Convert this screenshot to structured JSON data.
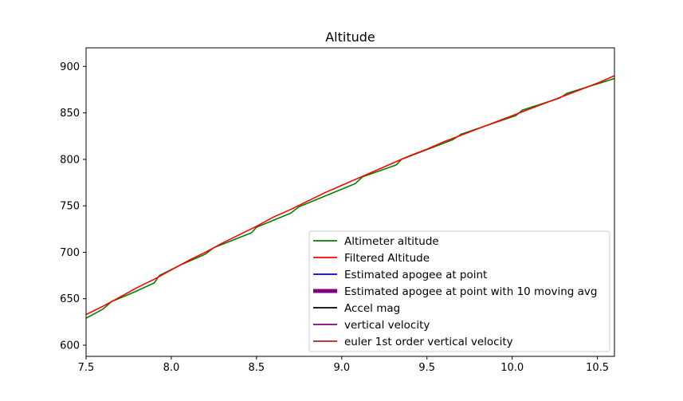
{
  "chart_data": {
    "type": "line",
    "title": "Altitude",
    "xlabel": "",
    "ylabel": "",
    "xlim": [
      7.5,
      10.6
    ],
    "ylim": [
      588,
      920
    ],
    "xticks": [
      7.5,
      8.0,
      8.5,
      9.0,
      9.5,
      10.0,
      10.5
    ],
    "xtick_labels": [
      "7.5",
      "8.0",
      "8.5",
      "9.0",
      "9.5",
      "10.0",
      "10.5"
    ],
    "yticks": [
      600,
      650,
      700,
      750,
      800,
      850,
      900
    ],
    "ytick_labels": [
      "600",
      "650",
      "700",
      "750",
      "800",
      "850",
      "900"
    ],
    "grid": false,
    "legend_position": "lower-right",
    "series": [
      {
        "name": "Altimeter altitude",
        "color": "#008000",
        "x": [
          7.5,
          7.6,
          7.65,
          7.78,
          7.9,
          7.93,
          8.05,
          8.2,
          8.25,
          8.47,
          8.5,
          8.7,
          8.75,
          9.08,
          9.12,
          9.32,
          9.35,
          9.65,
          9.7,
          10.02,
          10.06,
          10.28,
          10.32,
          10.6
        ],
        "y": [
          629,
          639,
          647,
          657,
          667,
          675,
          686,
          698,
          705,
          721,
          727,
          742,
          749,
          774,
          781,
          794,
          800,
          821,
          827,
          847,
          853,
          866,
          871,
          887
        ]
      },
      {
        "name": "Filtered Altitude",
        "color": "#ff0000",
        "x": [
          7.5,
          7.6,
          7.7,
          7.8,
          7.9,
          8.0,
          8.1,
          8.2,
          8.3,
          8.4,
          8.5,
          8.6,
          8.7,
          8.8,
          8.9,
          9.0,
          9.1,
          9.2,
          9.3,
          9.4,
          9.5,
          9.6,
          9.7,
          9.8,
          9.9,
          10.0,
          10.1,
          10.2,
          10.3,
          10.4,
          10.5,
          10.6
        ],
        "y": [
          633,
          642,
          652,
          662,
          671,
          681,
          691,
          700,
          710,
          719,
          728,
          738,
          746,
          755,
          764,
          772,
          780,
          788,
          796,
          804,
          811,
          819,
          826,
          833,
          840,
          847,
          854,
          861,
          868,
          875,
          882,
          890
        ]
      },
      {
        "name": "Estimated apogee at point",
        "color": "#0000ff",
        "x": [],
        "y": []
      },
      {
        "name": "Estimated apogee at point with 10 moving avg",
        "color": "#800080",
        "x": [],
        "y": []
      },
      {
        "name": "Accel mag",
        "color": "#000000",
        "x": [],
        "y": []
      },
      {
        "name": "vertical velocity",
        "color": "#800080",
        "x": [],
        "y": []
      },
      {
        "name": "euler 1st order vertical velocity",
        "color": "#b22222",
        "x": [],
        "y": []
      }
    ],
    "legend_styles": [
      "thin",
      "thin",
      "thin",
      "thick",
      "thin",
      "thin",
      "thin"
    ]
  }
}
